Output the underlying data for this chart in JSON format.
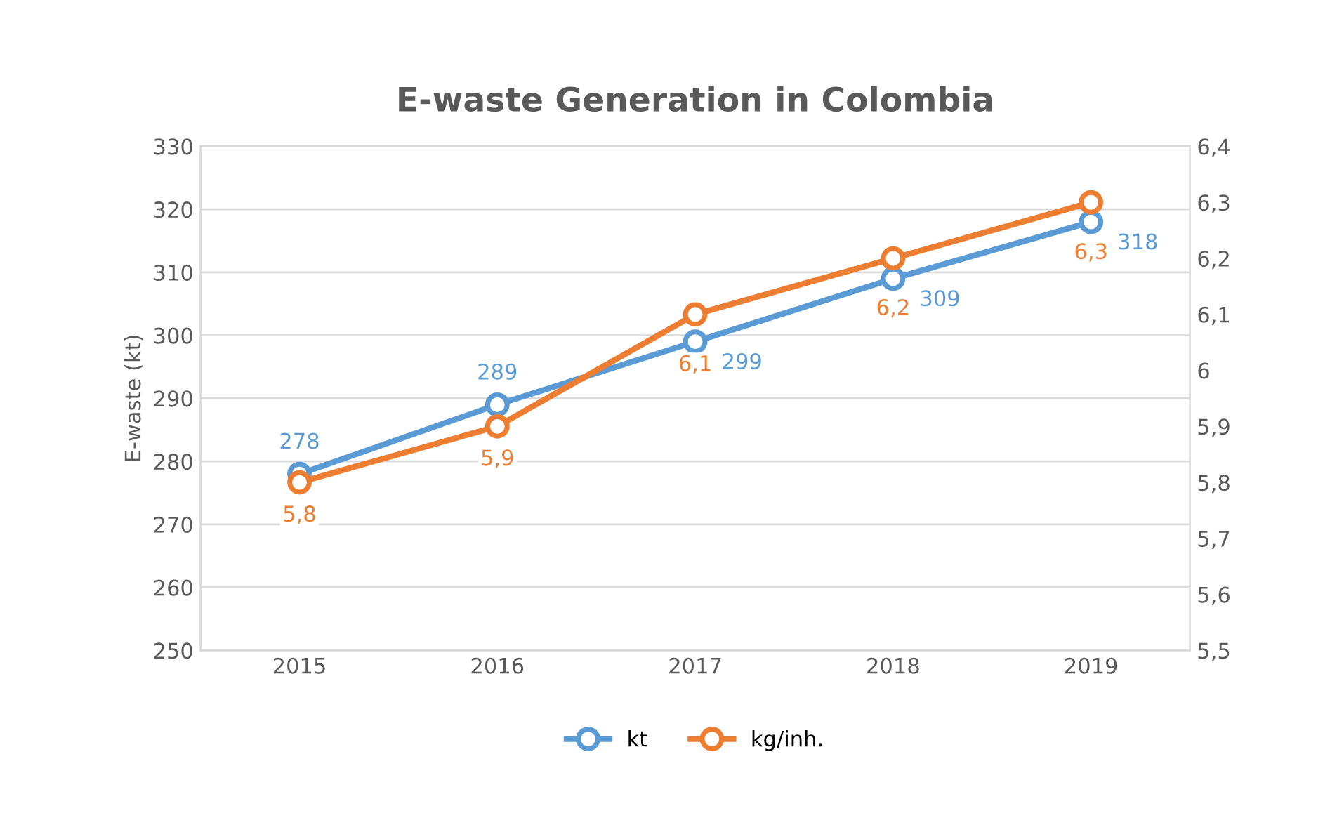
{
  "chart_data": {
    "type": "line",
    "title": "E-waste Generation in Colombia",
    "ylabel": "E-waste (kt)",
    "categories": [
      "2015",
      "2016",
      "2017",
      "2018",
      "2019"
    ],
    "series": [
      {
        "name": "kt",
        "color": "#5b9bd5",
        "values": [
          278,
          289,
          299,
          309,
          318
        ],
        "value_labels": [
          "278",
          "289",
          "299",
          "309",
          "318"
        ]
      },
      {
        "name": "kg/inh.",
        "color": "#ed7d31",
        "axis": "y2",
        "values": [
          5.8,
          5.9,
          6.1,
          6.2,
          6.3
        ],
        "value_labels": [
          "5,8",
          "5,9",
          "6,1",
          "6,2",
          "6,3"
        ]
      }
    ],
    "ylim": [
      250,
      330
    ],
    "yticks": [
      250,
      260,
      270,
      280,
      290,
      300,
      310,
      320,
      330
    ],
    "y2lim": [
      5.5,
      6.4
    ],
    "y2ticks": [
      {
        "value": 5.5,
        "label": "5,5"
      },
      {
        "value": 5.6,
        "label": "5,6"
      },
      {
        "value": 5.7,
        "label": "5,7"
      },
      {
        "value": 5.8,
        "label": "5,8"
      },
      {
        "value": 5.9,
        "label": "5,9"
      },
      {
        "value": 6,
        "label": "6"
      },
      {
        "value": 6.1,
        "label": "6,1"
      },
      {
        "value": 6.2,
        "label": "6,2"
      },
      {
        "value": 6.3,
        "label": "6,3"
      },
      {
        "value": 6.4,
        "label": "6,4"
      }
    ],
    "grid": "y",
    "legend": "bottom",
    "marker": "circle",
    "line_style": "solid"
  }
}
